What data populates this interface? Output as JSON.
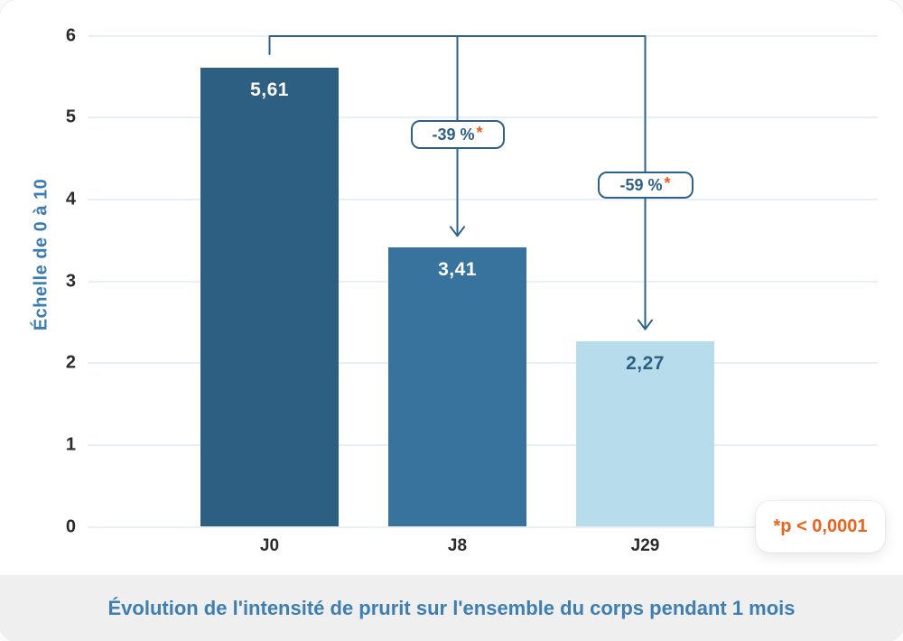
{
  "chart_data": {
    "type": "bar",
    "categories": [
      "J0",
      "J8",
      "J29"
    ],
    "values": [
      5.61,
      3.41,
      2.27
    ],
    "value_labels": [
      "5,61",
      "3,41",
      "2,27"
    ],
    "title": "Évolution de l'intensité de prurit sur l'ensemble du corps pendant 1 mois",
    "xlabel": "",
    "ylabel": "Échelle de 0 à 10",
    "ylim": [
      0,
      6
    ],
    "yticks": [
      "0",
      "1",
      "2",
      "3",
      "4",
      "5",
      "6"
    ],
    "grid": true,
    "legend": null,
    "bar_colors": [
      "#2D5F82",
      "#38739E",
      "#B7DDED"
    ],
    "value_label_colors": [
      "#FFFFFF",
      "#FFFFFF",
      "#2D5F82"
    ],
    "annotations": [
      {
        "label": "-39 %",
        "star": "*",
        "from": "J0",
        "to": "J8"
      },
      {
        "label": "-59 %",
        "star": "*",
        "from": "J0",
        "to": "J29"
      }
    ],
    "footnote": "*p < 0,0001"
  },
  "colors": {
    "bracket_blue": "#2E6189",
    "grid": "#E9EFF4",
    "axis_text": "#2B2B2B",
    "ylabel_blue": "#3B7CB2",
    "caption_blue": "#3E7EB0",
    "orange": "#ED611C",
    "band_bg": "#EFEFEF",
    "card_bg": "#FFFFFF"
  }
}
